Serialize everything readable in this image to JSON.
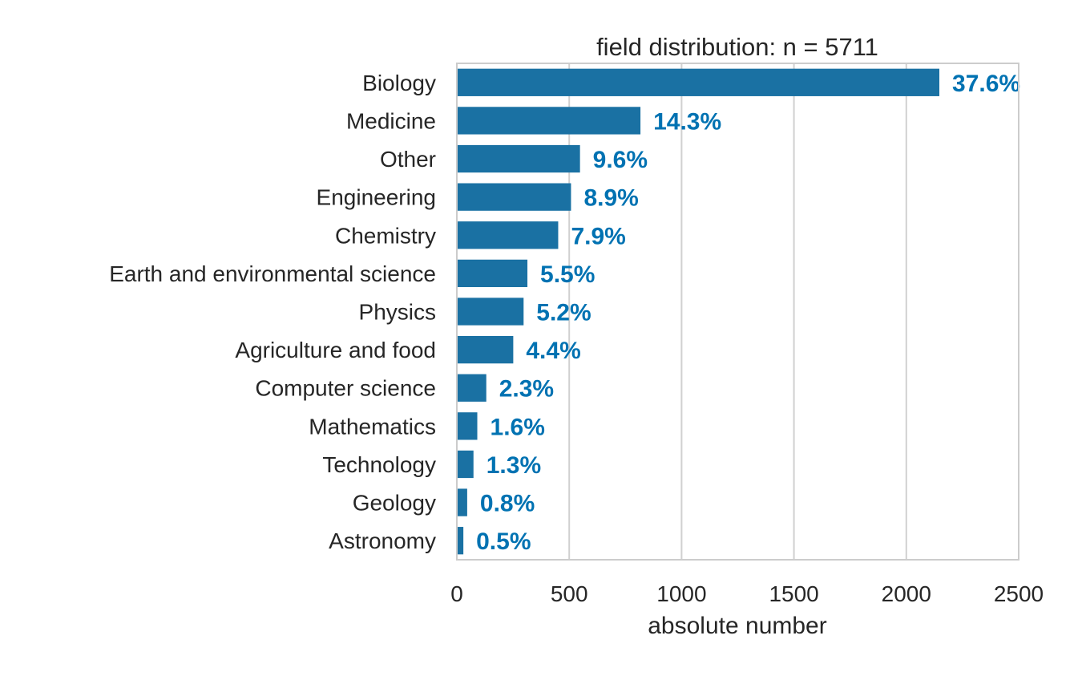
{
  "chart_data": {
    "type": "bar",
    "orientation": "horizontal",
    "title": "field distribution: n = 5711",
    "xlabel": "absolute number",
    "ylabel": "",
    "xlim": [
      0,
      2500
    ],
    "xticks": [
      0,
      500,
      1000,
      1500,
      2000,
      2500
    ],
    "xtick_labels": [
      "0",
      "500",
      "1000",
      "1500",
      "2000",
      "2500"
    ],
    "grid": true,
    "categories": [
      "Biology",
      "Medicine",
      "Other",
      "Engineering",
      "Chemistry",
      "Earth and environmental science",
      "Physics",
      "Agriculture and food",
      "Computer science",
      "Mathematics",
      "Technology",
      "Geology",
      "Astronomy"
    ],
    "values": [
      2147,
      817,
      548,
      508,
      451,
      314,
      297,
      251,
      131,
      91,
      74,
      46,
      29
    ],
    "data_labels": [
      "37.6%",
      "14.3%",
      "9.6%",
      "8.9%",
      "7.9%",
      "5.5%",
      "5.2%",
      "4.4%",
      "2.3%",
      "1.6%",
      "1.3%",
      "0.8%",
      "0.5%"
    ],
    "colors": {
      "bar": "#1a71a3",
      "label": "#0072b2",
      "grid": "#d0d0d0",
      "frame": "#cccccc",
      "text": "#262626"
    }
  }
}
